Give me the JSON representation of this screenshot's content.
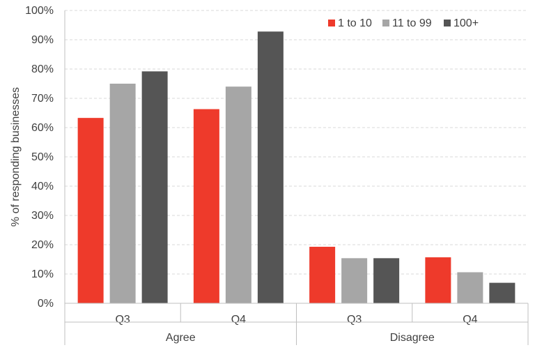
{
  "chart_data": {
    "type": "bar",
    "ylabel": "% of responding businesses",
    "ylim": [
      0,
      100
    ],
    "y_ticks": [
      "0%",
      "10%",
      "20%",
      "30%",
      "40%",
      "50%",
      "60%",
      "70%",
      "80%",
      "90%",
      "100%"
    ],
    "grid": true,
    "legend_position": "top-right",
    "groups": [
      {
        "label": "Agree",
        "categories": [
          "Q3",
          "Q4"
        ]
      },
      {
        "label": "Disagree",
        "categories": [
          "Q3",
          "Q4"
        ]
      }
    ],
    "series": [
      {
        "name": "1 to 10",
        "color": "#ee3a2b",
        "values": [
          63.3,
          66.3,
          19.3,
          15.7
        ]
      },
      {
        "name": "11 to 99",
        "color": "#a6a6a6",
        "values": [
          75.0,
          74.0,
          15.4,
          10.6
        ]
      },
      {
        "name": "100+",
        "color": "#555555",
        "values": [
          79.2,
          92.8,
          15.4,
          7.0
        ]
      }
    ]
  }
}
